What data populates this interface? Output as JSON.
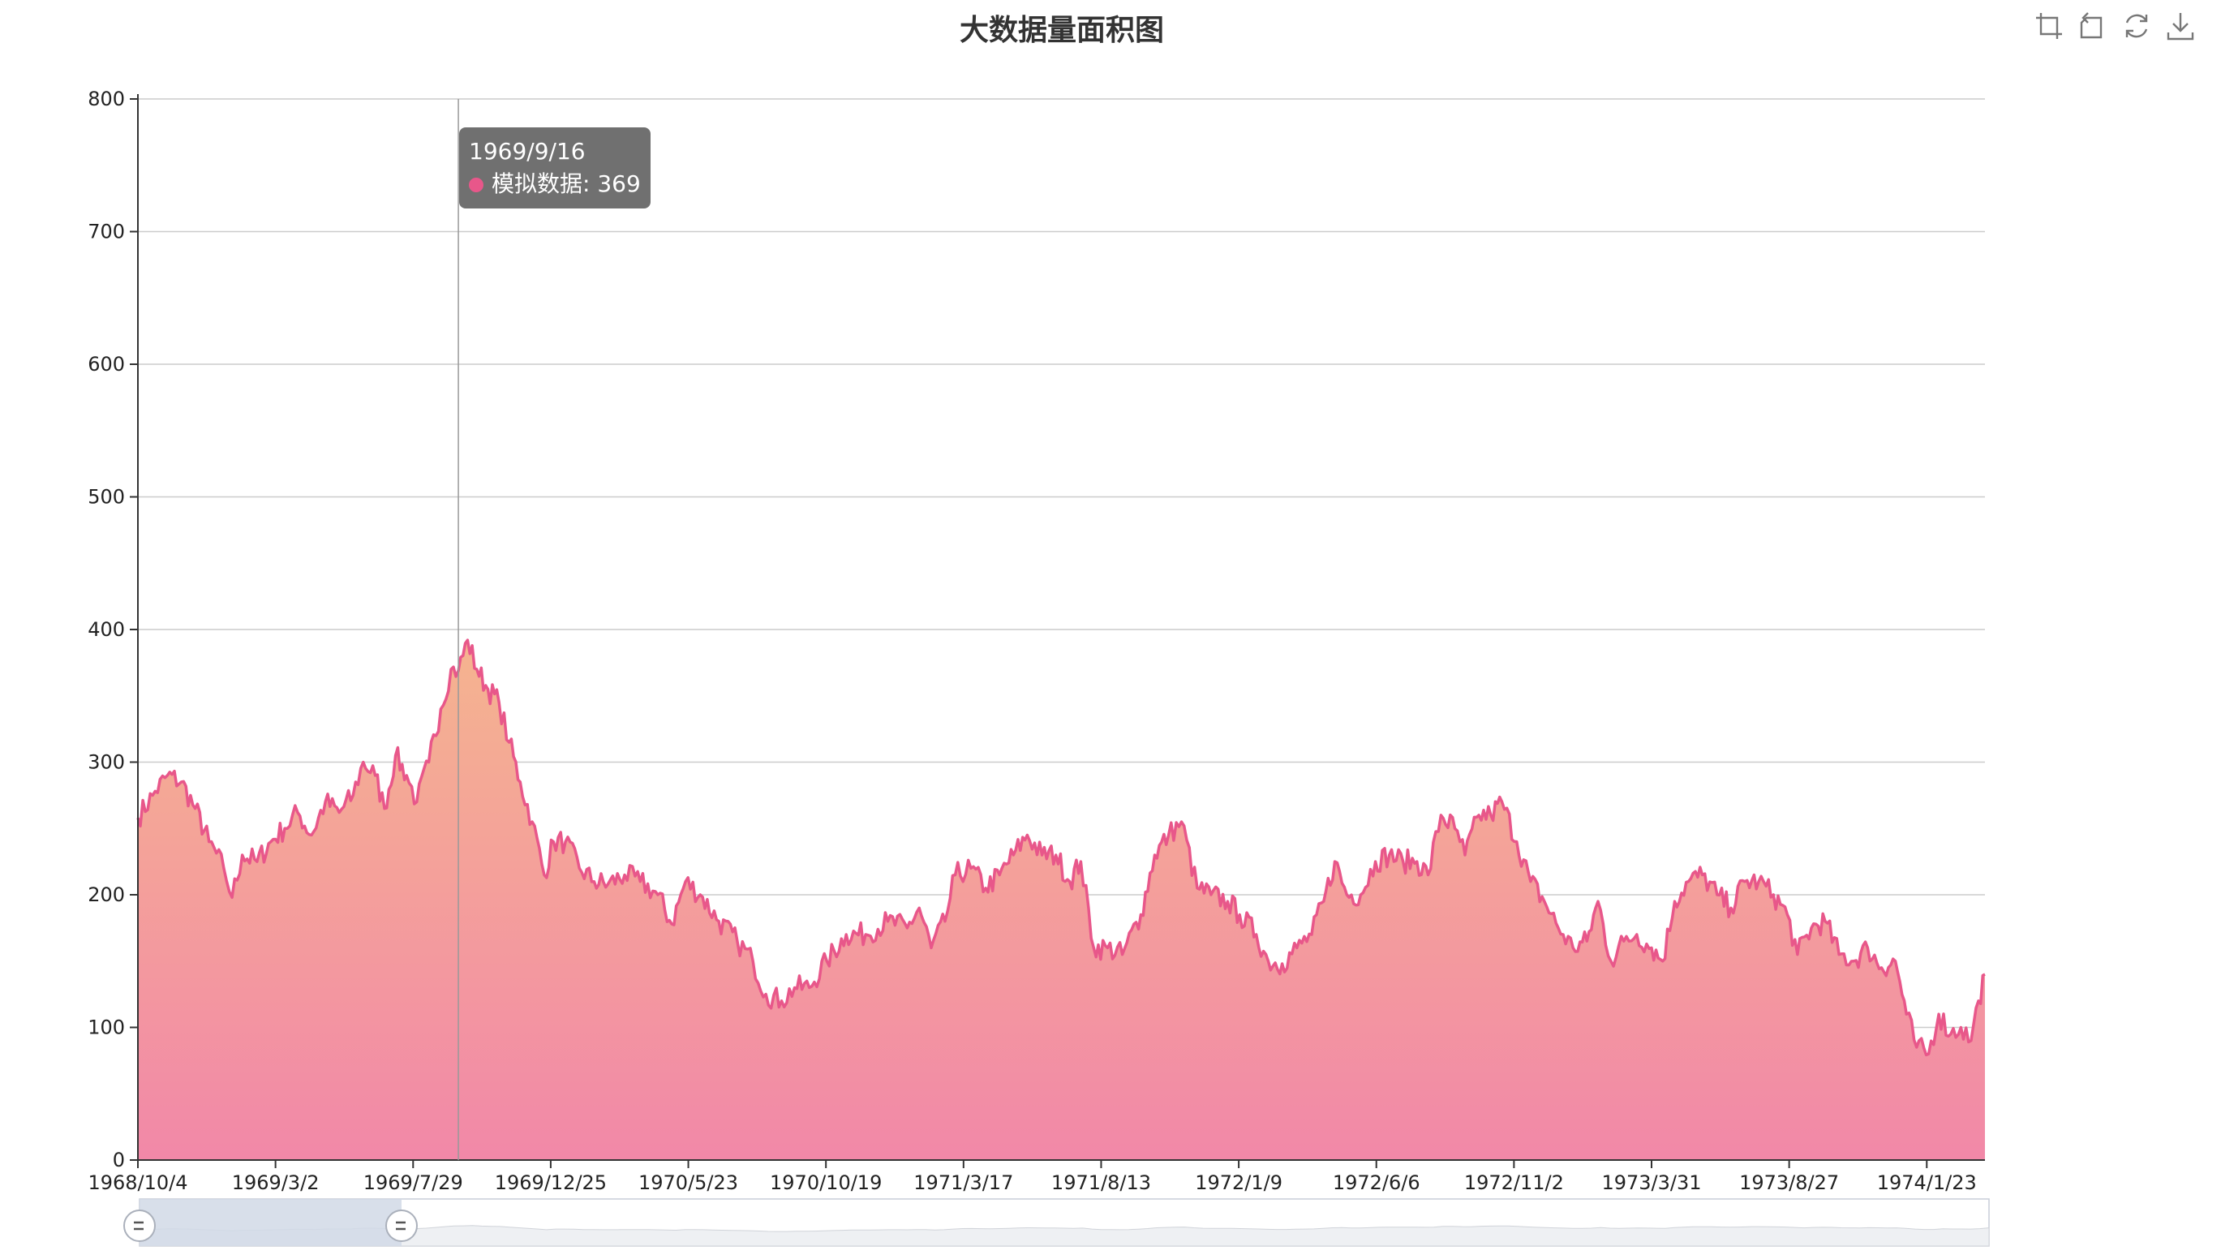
{
  "title": "大数据量面积图",
  "toolbox": {
    "icons": [
      "zoom-select-icon",
      "zoom-reset-icon",
      "restore-icon",
      "download-icon"
    ]
  },
  "tooltip": {
    "date": "1969/9/16",
    "series_label": "模拟数据",
    "value_text": "369",
    "dot_color": "#e8578a"
  },
  "colors": {
    "line": "#e8578a",
    "area_top": "#f5b48f",
    "area_bottom": "#f288a8",
    "grid": "#cccccc",
    "axis": "#333333",
    "slider_fill": "#d1d9e6",
    "slider_bg": "#eef0f3"
  },
  "chart_data": {
    "type": "area",
    "title": "大数据量面积图",
    "xlabel": "",
    "ylabel": "",
    "ylim": [
      0,
      800
    ],
    "y_ticks": [
      0,
      100,
      200,
      300,
      400,
      500,
      600,
      700,
      800
    ],
    "x_tick_labels": [
      "1968/10/4",
      "1969/3/2",
      "1969/7/29",
      "1969/12/25",
      "1970/5/23",
      "1970/10/19",
      "1971/3/17",
      "1971/8/13",
      "1972/1/9",
      "1972/6/6",
      "1972/11/2",
      "1973/3/31",
      "1973/8/27",
      "1974/1/23"
    ],
    "start_date": "1968/10/4",
    "end_date": "1974/3/27",
    "grid": true,
    "legend": "none",
    "dataZoom": {
      "start": 0,
      "end": 10
    },
    "crosshair_date": "1969/9/16",
    "series": [
      {
        "name": "模拟数据",
        "points": [
          [
            "1968/10/4",
            258
          ],
          [
            "1968/10/20",
            275
          ],
          [
            "1968/11/5",
            290
          ],
          [
            "1968/11/20",
            285
          ],
          [
            "1968/12/5",
            265
          ],
          [
            "1968/12/20",
            240
          ],
          [
            "1969/1/5",
            220
          ],
          [
            "1969/1/14",
            198
          ],
          [
            "1969/1/25",
            230
          ],
          [
            "1969/2/10",
            225
          ],
          [
            "1969/2/25",
            240
          ],
          [
            "1969/3/12",
            250
          ],
          [
            "1969/3/26",
            262
          ],
          [
            "1969/4/10",
            245
          ],
          [
            "1969/4/25",
            270
          ],
          [
            "1969/5/10",
            262
          ],
          [
            "1969/5/25",
            275
          ],
          [
            "1969/6/5",
            300
          ],
          [
            "1969/6/18",
            290
          ],
          [
            "1969/6/28",
            265
          ],
          [
            "1969/7/10",
            305
          ],
          [
            "1969/7/22",
            290
          ],
          [
            "1969/8/2",
            270
          ],
          [
            "1969/8/15",
            300
          ],
          [
            "1969/8/28",
            340
          ],
          [
            "1969/9/8",
            370
          ],
          [
            "1969/9/16",
            369
          ],
          [
            "1969/9/26",
            392
          ],
          [
            "1969/10/6",
            370
          ],
          [
            "1969/10/18",
            355
          ],
          [
            "1969/10/30",
            345
          ],
          [
            "1969/11/10",
            315
          ],
          [
            "1969/11/22",
            285
          ],
          [
            "1969/12/5",
            255
          ],
          [
            "1969/12/18",
            215
          ],
          [
            "1969/12/28",
            240
          ],
          [
            "1970/1/10",
            240
          ],
          [
            "1970/1/25",
            220
          ],
          [
            "1970/2/10",
            210
          ],
          [
            "1970/2/25",
            208
          ],
          [
            "1970/3/15",
            215
          ],
          [
            "1970/4/1",
            210
          ],
          [
            "1970/4/20",
            200
          ],
          [
            "1970/5/5",
            178
          ],
          [
            "1970/5/20",
            210
          ],
          [
            "1970/6/5",
            200
          ],
          [
            "1970/6/25",
            180
          ],
          [
            "1970/7/15",
            165
          ],
          [
            "1970/8/1",
            150
          ],
          [
            "1970/8/15",
            125
          ],
          [
            "1970/9/1",
            120
          ],
          [
            "1970/9/15",
            130
          ],
          [
            "1970/10/1",
            130
          ],
          [
            "1970/10/20",
            150
          ],
          [
            "1970/11/10",
            170
          ],
          [
            "1970/12/1",
            170
          ],
          [
            "1970/12/25",
            180
          ],
          [
            "1971/1/15",
            175
          ],
          [
            "1971/1/28",
            190
          ],
          [
            "1971/2/10",
            160
          ],
          [
            "1971/2/25",
            180
          ],
          [
            "1971/3/8",
            215
          ],
          [
            "1971/3/25",
            220
          ],
          [
            "1971/4/10",
            205
          ],
          [
            "1971/4/25",
            215
          ],
          [
            "1971/5/10",
            230
          ],
          [
            "1971/5/25",
            245
          ],
          [
            "1971/6/10",
            230
          ],
          [
            "1971/6/25",
            230
          ],
          [
            "1971/7/10",
            210
          ],
          [
            "1971/7/22",
            225
          ],
          [
            "1971/8/5",
            160
          ],
          [
            "1971/8/20",
            160
          ],
          [
            "1971/9/5",
            155
          ],
          [
            "1971/9/25",
            185
          ],
          [
            "1971/10/10",
            230
          ],
          [
            "1971/10/25",
            245
          ],
          [
            "1971/11/8",
            255
          ],
          [
            "1971/11/25",
            205
          ],
          [
            "1971/12/10",
            200
          ],
          [
            "1971/12/28",
            195
          ],
          [
            "1972/1/10",
            185
          ],
          [
            "1972/1/28",
            170
          ],
          [
            "1972/2/10",
            150
          ],
          [
            "1972/2/25",
            148
          ],
          [
            "1972/3/12",
            160
          ],
          [
            "1972/3/28",
            170
          ],
          [
            "1972/4/10",
            195
          ],
          [
            "1972/4/22",
            225
          ],
          [
            "1972/5/5",
            200
          ],
          [
            "1972/5/20",
            200
          ],
          [
            "1972/6/5",
            225
          ],
          [
            "1972/6/20",
            230
          ],
          [
            "1972/7/5",
            225
          ],
          [
            "1972/7/20",
            225
          ],
          [
            "1972/8/1",
            215
          ],
          [
            "1972/8/15",
            260
          ],
          [
            "1972/8/30",
            250
          ],
          [
            "1972/9/10",
            230
          ],
          [
            "1972/9/25",
            260
          ],
          [
            "1972/10/8",
            260
          ],
          [
            "1972/10/20",
            270
          ],
          [
            "1972/11/5",
            240
          ],
          [
            "1972/11/20",
            210
          ],
          [
            "1972/12/5",
            195
          ],
          [
            "1972/12/20",
            175
          ],
          [
            "1973/1/5",
            160
          ],
          [
            "1973/1/20",
            165
          ],
          [
            "1973/2/1",
            195
          ],
          [
            "1973/2/15",
            150
          ],
          [
            "1973/3/1",
            165
          ],
          [
            "1973/3/15",
            170
          ],
          [
            "1973/3/31",
            160
          ],
          [
            "1973/4/12",
            150
          ],
          [
            "1973/4/25",
            195
          ],
          [
            "1973/5/10",
            210
          ],
          [
            "1973/5/25",
            215
          ],
          [
            "1973/6/10",
            200
          ],
          [
            "1973/6/25",
            190
          ],
          [
            "1973/7/10",
            210
          ],
          [
            "1973/7/25",
            210
          ],
          [
            "1973/8/10",
            200
          ],
          [
            "1973/8/25",
            185
          ],
          [
            "1973/9/5",
            155
          ],
          [
            "1973/9/20",
            175
          ],
          [
            "1973/10/5",
            180
          ],
          [
            "1973/10/20",
            155
          ],
          [
            "1973/11/5",
            150
          ],
          [
            "1973/11/20",
            160
          ],
          [
            "1973/12/5",
            145
          ],
          [
            "1973/12/20",
            150
          ],
          [
            "1974/1/1",
            110
          ],
          [
            "1974/1/12",
            85
          ],
          [
            "1974/1/25",
            80
          ],
          [
            "1974/2/5",
            110
          ],
          [
            "1974/2/18",
            95
          ],
          [
            "1974/3/1",
            100
          ],
          [
            "1974/3/12",
            90
          ],
          [
            "1974/3/20",
            120
          ],
          [
            "1974/3/27",
            140
          ]
        ]
      }
    ]
  }
}
